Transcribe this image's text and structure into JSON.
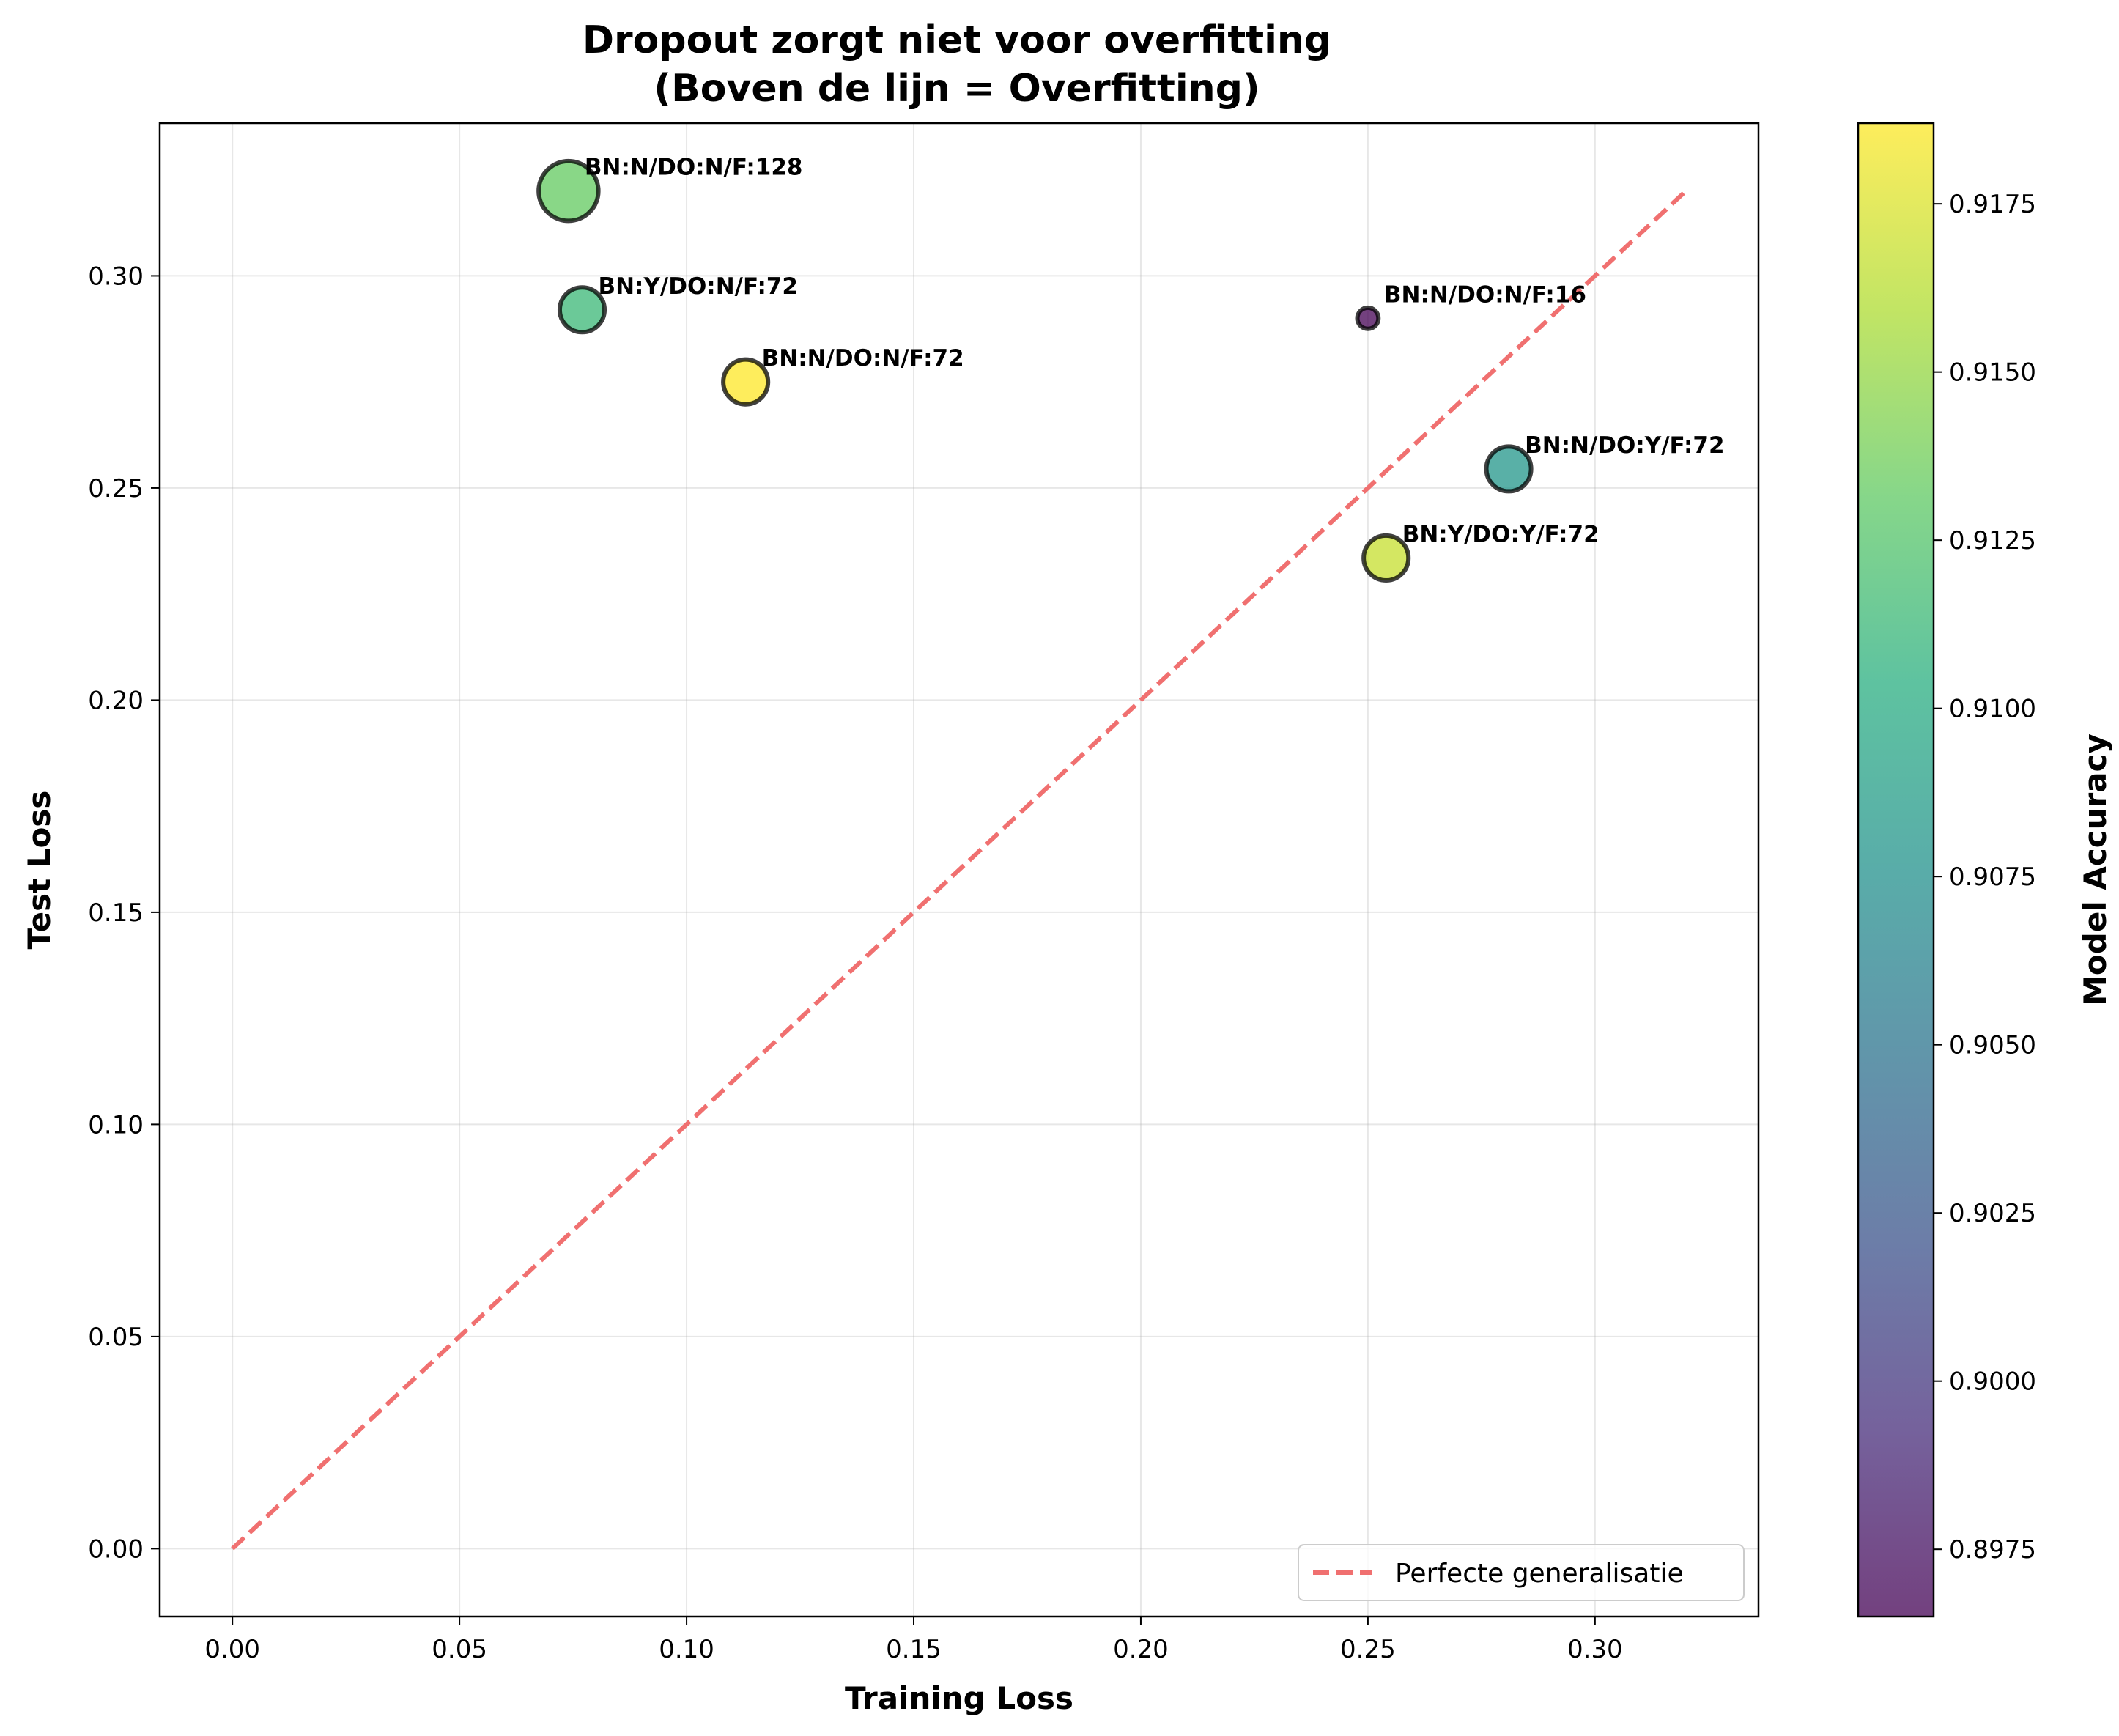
{
  "chart_data": {
    "type": "scatter",
    "title": "Dropout zorgt niet voor overfitting",
    "subtitle": "(Boven de lijn = Overfitting)",
    "xlabel": "Training Loss",
    "ylabel": "Test Loss",
    "xlim": [
      -0.016,
      0.336
    ],
    "ylim": [
      -0.016,
      0.336
    ],
    "xticks": [
      0.0,
      0.05,
      0.1,
      0.15,
      0.2,
      0.25,
      0.3
    ],
    "xtick_labels": [
      "0.00",
      "0.05",
      "0.10",
      "0.15",
      "0.20",
      "0.25",
      "0.30"
    ],
    "yticks": [
      0.0,
      0.05,
      0.1,
      0.15,
      0.2,
      0.25,
      0.3
    ],
    "ytick_labels": [
      "0.00",
      "0.05",
      "0.10",
      "0.15",
      "0.20",
      "0.25",
      "0.30"
    ],
    "grid": true,
    "points": [
      {
        "label": "BN:N/DO:N/F:128",
        "x": 0.074,
        "y": 0.32,
        "accuracy": 0.9133,
        "size": 128
      },
      {
        "label": "BN:Y/DO:N/F:72",
        "x": 0.077,
        "y": 0.292,
        "accuracy": 0.9113,
        "size": 72
      },
      {
        "label": "BN:N/DO:N/F:72",
        "x": 0.113,
        "y": 0.275,
        "accuracy": 0.9187,
        "size": 72
      },
      {
        "label": "BN:N/DO:N/F:16",
        "x": 0.25,
        "y": 0.29,
        "accuracy": 0.8965,
        "size": 16
      },
      {
        "label": "BN:N/DO:Y/F:72",
        "x": 0.281,
        "y": 0.2545,
        "accuracy": 0.908,
        "size": 72
      },
      {
        "label": "BN:Y/DO:Y/F:72",
        "x": 0.254,
        "y": 0.2335,
        "accuracy": 0.9168,
        "size": 72
      }
    ],
    "reference_line": {
      "label": "Perfecte generalisatie",
      "x": [
        0.0,
        0.32
      ],
      "y": [
        0.0,
        0.32
      ],
      "color": "#f07070",
      "style": "dashed"
    },
    "legend_position": "lower right",
    "colorbar": {
      "label": "Model Accuracy",
      "colormap": "viridis",
      "range": [
        0.8965,
        0.9187
      ],
      "ticks": [
        0.8975,
        0.9,
        0.9025,
        0.905,
        0.9075,
        0.91,
        0.9125,
        0.915,
        0.9175
      ],
      "tick_labels": [
        "0.8975",
        "0.9000",
        "0.9025",
        "0.9050",
        "0.9075",
        "0.9100",
        "0.9125",
        "0.9150",
        "0.9175"
      ]
    }
  }
}
